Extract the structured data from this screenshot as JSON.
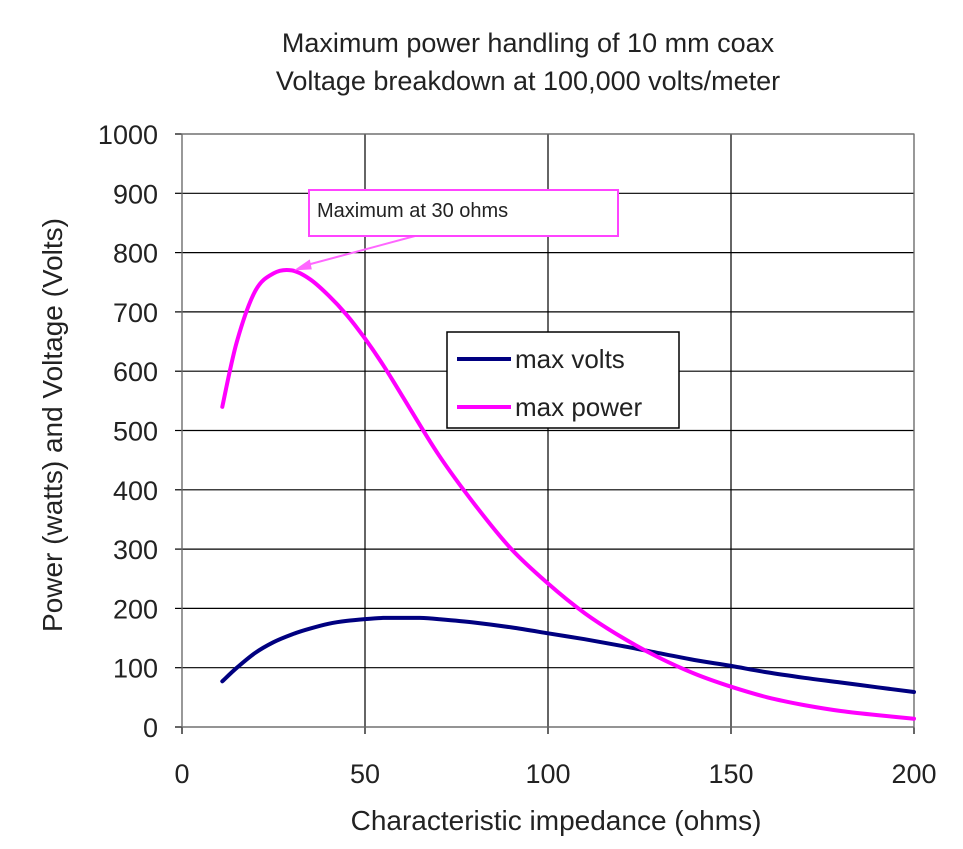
{
  "chart_data": {
    "type": "line",
    "title_lines": [
      "Maximum power handling of 10 mm coax",
      "Voltage breakdown at 100,000 volts/meter"
    ],
    "xlabel": "Characteristic impedance (ohms)",
    "ylabel": "Power (watts) and Voltage (Volts)",
    "xlim": [
      0,
      200
    ],
    "ylim": [
      0,
      1000
    ],
    "x_ticks": [
      0,
      50,
      100,
      150,
      200
    ],
    "y_ticks": [
      0,
      100,
      200,
      300,
      400,
      500,
      600,
      700,
      800,
      900,
      1000
    ],
    "grid": true,
    "legend_position": "center-right",
    "series": [
      {
        "name": "max volts",
        "color": "#000080",
        "x": [
          11,
          15,
          20,
          25,
          30,
          35,
          40,
          45,
          50,
          55,
          60,
          65,
          70,
          80,
          90,
          100,
          110,
          120,
          130,
          140,
          150,
          160,
          170,
          180,
          190,
          200
        ],
        "y": [
          77,
          100,
          125,
          143,
          156,
          166,
          174,
          179,
          182,
          184,
          184,
          184,
          182,
          176,
          168,
          158,
          148,
          137,
          125,
          113,
          103,
          92,
          83,
          75,
          67,
          59
        ]
      },
      {
        "name": "max power",
        "color": "#ff00ff",
        "x": [
          11,
          15,
          20,
          25,
          30,
          35,
          40,
          45,
          50,
          55,
          60,
          70,
          80,
          90,
          100,
          110,
          120,
          130,
          140,
          150,
          160,
          170,
          180,
          190,
          200
        ],
        "y": [
          540,
          650,
          735,
          765,
          770,
          755,
          728,
          695,
          655,
          610,
          560,
          460,
          375,
          300,
          242,
          192,
          152,
          118,
          90,
          68,
          50,
          37,
          27,
          20,
          14
        ]
      }
    ],
    "annotation": {
      "text": "Maximum at 30 ohms",
      "point_x": 30,
      "point_y": 770
    }
  }
}
